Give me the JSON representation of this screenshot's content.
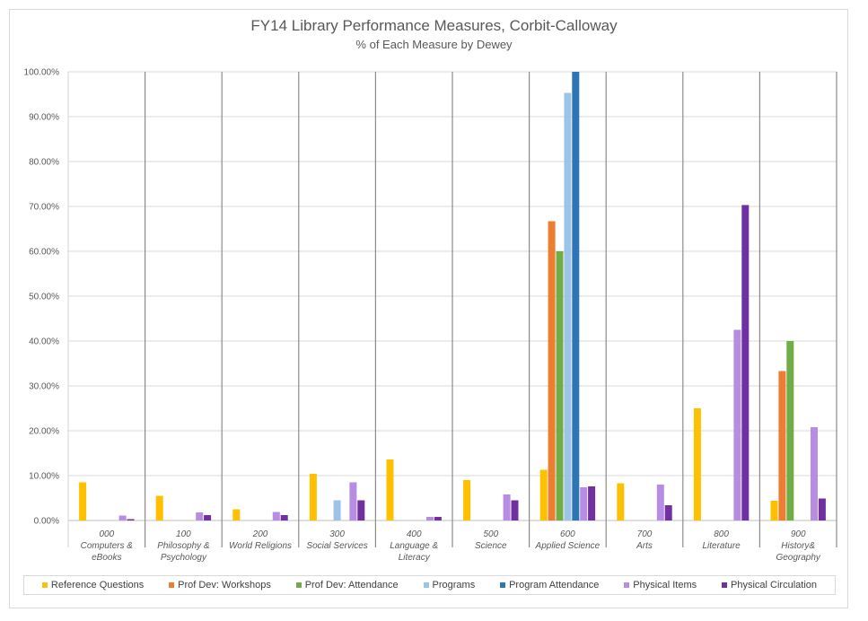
{
  "chart_data": {
    "type": "bar",
    "title": "FY14 Library Performance Measures, Corbit-Calloway",
    "subtitle": "% of Each Measure by Dewey",
    "ylim": [
      0,
      100
    ],
    "yticks": [
      "0.00%",
      "10.00%",
      "20.00%",
      "30.00%",
      "40.00%",
      "50.00%",
      "60.00%",
      "70.00%",
      "80.00%",
      "90.00%",
      "100.00%"
    ],
    "grid": true,
    "legend_position": "bottom",
    "categories": [
      [
        "000",
        "Computers &",
        "eBooks"
      ],
      [
        "100",
        "Philosophy &",
        "Psychology"
      ],
      [
        "200",
        "World Religions"
      ],
      [
        "300",
        "Social Services"
      ],
      [
        "400",
        "Language &",
        "Literacy"
      ],
      [
        "500",
        "Science"
      ],
      [
        "600",
        "Applied Science"
      ],
      [
        "700",
        "Arts"
      ],
      [
        "800",
        "Literature"
      ],
      [
        "900",
        "History&",
        "Geography"
      ]
    ],
    "series": [
      {
        "name": "Reference Questions",
        "color": "#ffc000",
        "values": [
          8.5,
          5.5,
          2.5,
          10.4,
          13.6,
          9.0,
          11.3,
          8.3,
          25.0,
          4.4
        ]
      },
      {
        "name": "Prof Dev: Workshops",
        "color": "#ed7d31",
        "values": [
          0,
          0,
          0,
          0,
          0,
          0,
          66.7,
          0,
          0,
          33.3
        ]
      },
      {
        "name": "Prof Dev: Attendance",
        "color": "#70ad47",
        "values": [
          0,
          0,
          0,
          0,
          0,
          0,
          60.0,
          0,
          0,
          40.0
        ]
      },
      {
        "name": "Programs",
        "color": "#9dc3e6",
        "values": [
          0,
          0,
          0,
          4.5,
          0,
          0,
          95.3,
          0,
          0,
          0
        ]
      },
      {
        "name": "Program Attendance",
        "color": "#2e75b6",
        "values": [
          0,
          0,
          0,
          0,
          0,
          0,
          100.0,
          0,
          0,
          0
        ]
      },
      {
        "name": "Physical Items",
        "color": "#b68de3",
        "values": [
          1.1,
          1.8,
          1.9,
          8.5,
          0.8,
          5.8,
          7.4,
          8.0,
          42.5,
          20.8
        ]
      },
      {
        "name": "Physical Circulation",
        "color": "#7030a0",
        "values": [
          0.3,
          1.2,
          1.2,
          4.5,
          0.8,
          4.5,
          7.6,
          3.4,
          70.3,
          4.9
        ]
      }
    ]
  }
}
